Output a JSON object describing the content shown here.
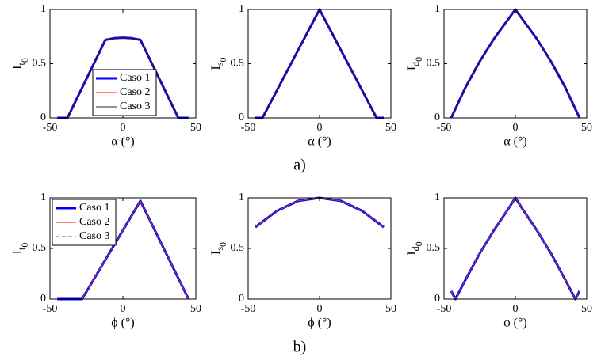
{
  "captions": [
    "a)",
    "b)"
  ],
  "chart_data": [
    {
      "type": "line",
      "xlabel": "α (°)",
      "ylabel": [
        "I",
        "t",
        "0"
      ],
      "x": [
        -45,
        -38,
        -12,
        -6,
        0,
        6,
        12,
        38,
        45
      ],
      "series": [
        {
          "name": "Caso 1",
          "color": "#0000ff",
          "linewidth": 3,
          "linestyle": "solid",
          "values": [
            0,
            0,
            0.72,
            0.735,
            0.74,
            0.735,
            0.72,
            0,
            0
          ]
        },
        {
          "name": "Caso 2",
          "color": "#ff0000",
          "linewidth": 1,
          "linestyle": "solid",
          "values": [
            0,
            0,
            0.72,
            0.735,
            0.74,
            0.735,
            0.72,
            0,
            0
          ]
        },
        {
          "name": "Caso 3",
          "color": "#222222",
          "linewidth": 1,
          "linestyle": "solid",
          "values": [
            0,
            0,
            0.72,
            0.735,
            0.74,
            0.735,
            0.72,
            0,
            0
          ]
        }
      ],
      "xlim": [
        -50,
        50
      ],
      "xticks": [
        -50,
        0,
        50
      ],
      "ylim": [
        0,
        1
      ],
      "yticks": [
        0,
        0.5,
        1
      ],
      "legend": "lower center"
    },
    {
      "type": "line",
      "xlabel": "α (°)",
      "ylabel": [
        "I",
        "s",
        "0"
      ],
      "x": [
        -45,
        -40,
        0,
        40,
        45
      ],
      "series": [
        {
          "color": "#0000ff",
          "linewidth": 3,
          "linestyle": "solid",
          "values": [
            0,
            0,
            1,
            0,
            0
          ]
        },
        {
          "color": "#ff0000",
          "linewidth": 1,
          "linestyle": "solid",
          "values": [
            0,
            0,
            1,
            0,
            0
          ]
        },
        {
          "color": "#222222",
          "linewidth": 1,
          "linestyle": "solid",
          "values": [
            0,
            0,
            1,
            0,
            0
          ]
        }
      ],
      "xlim": [
        -50,
        50
      ],
      "xticks": [
        -50,
        0,
        50
      ],
      "ylim": [
        0,
        1
      ],
      "yticks": [
        0,
        0.5,
        1
      ]
    },
    {
      "type": "line",
      "xlabel": "α (°)",
      "ylabel": [
        "I",
        "d",
        "0"
      ],
      "x": [
        -45,
        -35,
        -25,
        -15,
        -5,
        0,
        5,
        15,
        25,
        35,
        45
      ],
      "series": [
        {
          "color": "#0000ff",
          "linewidth": 3,
          "linestyle": "solid",
          "values": [
            0,
            0.28,
            0.52,
            0.73,
            0.91,
            1,
            0.91,
            0.73,
            0.52,
            0.28,
            0
          ]
        },
        {
          "color": "#ff0000",
          "linewidth": 1,
          "linestyle": "solid",
          "values": [
            0,
            0.28,
            0.52,
            0.73,
            0.91,
            1,
            0.91,
            0.73,
            0.52,
            0.28,
            0
          ]
        },
        {
          "color": "#222222",
          "linewidth": 1,
          "linestyle": "solid",
          "values": [
            0,
            0.28,
            0.52,
            0.73,
            0.91,
            1,
            0.91,
            0.73,
            0.52,
            0.28,
            0
          ]
        }
      ],
      "xlim": [
        -50,
        50
      ],
      "xticks": [
        -50,
        0,
        50
      ],
      "ylim": [
        0,
        1
      ],
      "yticks": [
        0,
        0.5,
        1
      ]
    },
    {
      "type": "line",
      "xlabel": "ϕ (°)",
      "ylabel": [
        "I",
        "t",
        "0"
      ],
      "x": [
        -45,
        -28,
        12,
        45
      ],
      "series": [
        {
          "name": "Caso 1",
          "color": "#0000ff",
          "linewidth": 3,
          "linestyle": "solid",
          "values": [
            0,
            0,
            0.97,
            0
          ]
        },
        {
          "name": "Caso 2",
          "color": "#ff0000",
          "linewidth": 1,
          "linestyle": "solid",
          "values": [
            0,
            0,
            0.97,
            0
          ]
        },
        {
          "name": "Caso 3",
          "color": "#666666",
          "linewidth": 1,
          "linestyle": "dashed",
          "values": [
            0,
            0,
            0.97,
            0
          ]
        }
      ],
      "xlim": [
        -50,
        50
      ],
      "xticks": [
        -50,
        0,
        50
      ],
      "ylim": [
        0,
        1
      ],
      "yticks": [
        0,
        0.5,
        1
      ],
      "legend": "upper left"
    },
    {
      "type": "line",
      "xlabel": "ϕ (°)",
      "ylabel": [
        "I",
        "s",
        "0"
      ],
      "x": [
        -45,
        -30,
        -15,
        0,
        15,
        30,
        45
      ],
      "series": [
        {
          "color": "#0000ff",
          "linewidth": 3,
          "linestyle": "solid",
          "values": [
            0.71,
            0.87,
            0.97,
            1,
            0.97,
            0.87,
            0.71
          ]
        },
        {
          "color": "#ff0000",
          "linewidth": 1,
          "linestyle": "solid",
          "values": [
            0.71,
            0.87,
            0.97,
            1,
            0.97,
            0.87,
            0.71
          ]
        },
        {
          "color": "#666666",
          "linewidth": 1,
          "linestyle": "dashed",
          "values": [
            0.71,
            0.87,
            0.97,
            1,
            0.97,
            0.87,
            0.71
          ]
        }
      ],
      "xlim": [
        -50,
        50
      ],
      "xticks": [
        -50,
        0,
        50
      ],
      "ylim": [
        0,
        1
      ],
      "yticks": [
        0,
        0.5,
        1
      ]
    },
    {
      "type": "line",
      "xlabel": "ϕ (°)",
      "ylabel": [
        "I",
        "d",
        "0"
      ],
      "x": [
        -45,
        -42,
        -35,
        -25,
        -15,
        -5,
        0,
        5,
        15,
        25,
        35,
        42,
        45
      ],
      "series": [
        {
          "color": "#0000ff",
          "linewidth": 3,
          "linestyle": "solid",
          "values": [
            0.08,
            0,
            0.19,
            0.45,
            0.68,
            0.89,
            1,
            0.89,
            0.68,
            0.45,
            0.19,
            0,
            0.08
          ]
        },
        {
          "color": "#ff0000",
          "linewidth": 1,
          "linestyle": "solid",
          "values": [
            0.08,
            0,
            0.19,
            0.45,
            0.68,
            0.89,
            1,
            0.89,
            0.68,
            0.45,
            0.19,
            0,
            0.08
          ]
        },
        {
          "color": "#666666",
          "linewidth": 1,
          "linestyle": "dashed",
          "values": [
            0.08,
            0,
            0.19,
            0.45,
            0.68,
            0.89,
            1,
            0.89,
            0.68,
            0.45,
            0.19,
            0,
            0.08
          ]
        }
      ],
      "xlim": [
        -50,
        50
      ],
      "xticks": [
        -50,
        0,
        50
      ],
      "ylim": [
        0,
        1
      ],
      "yticks": [
        0,
        0.5,
        1
      ]
    }
  ]
}
